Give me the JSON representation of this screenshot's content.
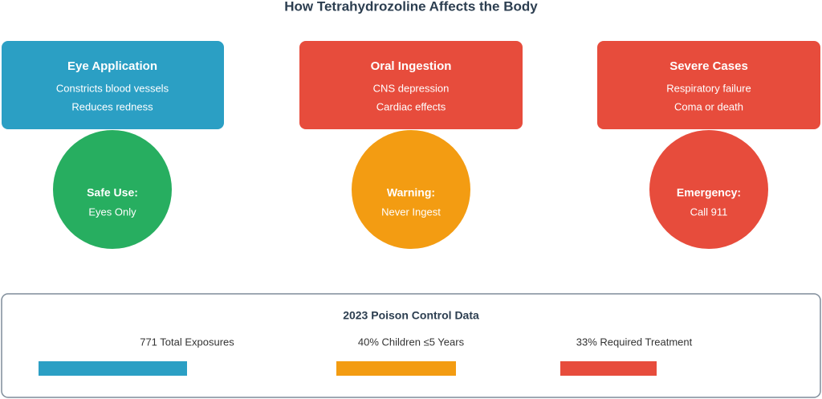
{
  "title": "How Tetrahydrozoline Affects the Body",
  "cards": [
    {
      "title": "Eye Application",
      "lines": [
        "Constricts blood vessels",
        "Reduces redness"
      ]
    },
    {
      "title": "Oral Ingestion",
      "lines": [
        "CNS depression",
        "Cardiac effects"
      ]
    },
    {
      "title": "Severe Cases",
      "lines": [
        "Respiratory failure",
        "Coma or death"
      ]
    }
  ],
  "circles": [
    {
      "title": "Safe Use:",
      "text": "Eyes Only"
    },
    {
      "title": "Warning:",
      "text": "Never Ingest"
    },
    {
      "title": "Emergency:",
      "text": "Call 911"
    }
  ],
  "panel": {
    "title": "2023 Poison Control Data",
    "stats": [
      "771 Total Exposures",
      "40% Children ≤5 Years",
      "33% Required Treatment"
    ]
  }
}
